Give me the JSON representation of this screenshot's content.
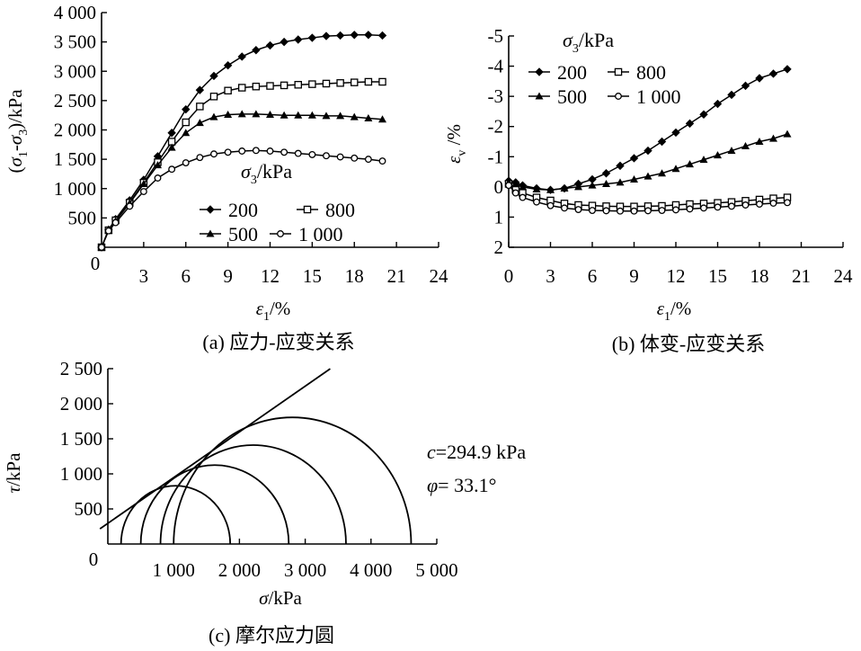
{
  "figure": {
    "panels": [
      {
        "id": "a",
        "type": "line",
        "caption": "(a) 应力-应变关系",
        "xlabel": "ε1/%",
        "ylabel": "(σ1-σ3)/kPa",
        "xlim": [
          0,
          24
        ],
        "ylim": [
          0,
          4000
        ],
        "xticks": [
          3,
          6,
          9,
          12,
          15,
          18,
          21,
          24
        ],
        "xtick_labels": [
          "3",
          "6",
          "9",
          "12",
          "15",
          "18",
          "21",
          "24"
        ],
        "yticks": [
          500,
          1000,
          1500,
          2000,
          2500,
          3000,
          3500,
          4000
        ],
        "ytick_labels": [
          "500",
          "1 000",
          "1 500",
          "2 000",
          "2 500",
          "3 000",
          "3 500",
          "4 000"
        ],
        "origin_label": "0",
        "legend": {
          "title": "σ3/kPa",
          "placement": "lower-center",
          "entries": [
            {
              "label": "200",
              "marker": "diamond"
            },
            {
              "label": "800",
              "marker": "square-open"
            },
            {
              "label": "500",
              "marker": "triangle"
            },
            {
              "label": "1 000",
              "marker": "circle-open"
            }
          ]
        },
        "series": [
          {
            "name": "200",
            "marker": "diamond",
            "x": [
              0,
              0.5,
              1,
              2,
              3,
              4,
              5,
              6,
              7,
              8,
              9,
              10,
              11,
              12,
              13,
              14,
              15,
              16,
              17,
              18,
              19,
              20
            ],
            "y": [
              0,
              300,
              480,
              800,
              1150,
              1550,
              1950,
              2350,
              2680,
              2920,
              3100,
              3250,
              3360,
              3440,
              3500,
              3540,
              3570,
              3600,
              3610,
              3620,
              3620,
              3610
            ]
          },
          {
            "name": "800",
            "marker": "square-open",
            "x": [
              0,
              0.5,
              1,
              2,
              3,
              4,
              5,
              6,
              7,
              8,
              9,
              10,
              11,
              12,
              13,
              14,
              15,
              16,
              17,
              18,
              19,
              20
            ],
            "y": [
              0,
              290,
              460,
              760,
              1100,
              1450,
              1800,
              2130,
              2400,
              2570,
              2670,
              2720,
              2740,
              2750,
              2760,
              2770,
              2780,
              2790,
              2800,
              2810,
              2820,
              2820
            ]
          },
          {
            "name": "500",
            "marker": "triangle",
            "x": [
              0,
              0.5,
              1,
              2,
              3,
              4,
              5,
              6,
              7,
              8,
              9,
              10,
              11,
              12,
              13,
              14,
              15,
              16,
              17,
              18,
              19,
              20
            ],
            "y": [
              0,
              290,
              450,
              750,
              1080,
              1400,
              1700,
              1950,
              2120,
              2220,
              2260,
              2270,
              2270,
              2260,
              2250,
              2250,
              2250,
              2240,
              2240,
              2220,
              2200,
              2180
            ]
          },
          {
            "name": "1 000",
            "marker": "circle-open",
            "x": [
              0,
              0.5,
              1,
              2,
              3,
              4,
              5,
              6,
              7,
              8,
              9,
              10,
              11,
              12,
              13,
              14,
              15,
              16,
              17,
              18,
              19,
              20
            ],
            "y": [
              0,
              280,
              420,
              700,
              950,
              1180,
              1330,
              1440,
              1530,
              1590,
              1620,
              1640,
              1650,
              1640,
              1620,
              1600,
              1580,
              1560,
              1540,
              1520,
              1500,
              1470
            ]
          }
        ]
      },
      {
        "id": "b",
        "type": "line",
        "caption": "(b) 体变-应变关系",
        "xlabel": "ε1/%",
        "ylabel": "εv/%",
        "xlim": [
          0,
          24
        ],
        "ylim": [
          2,
          -5
        ],
        "xticks": [
          0,
          3,
          6,
          9,
          12,
          15,
          18,
          21,
          24
        ],
        "xtick_labels": [
          "0",
          "3",
          "6",
          "9",
          "12",
          "15",
          "18",
          "21",
          "24"
        ],
        "yticks": [
          -5,
          -4,
          -3,
          -2,
          -1,
          0,
          1,
          2
        ],
        "ytick_labels": [
          "-5",
          "-4",
          "-3",
          "-2",
          "-1",
          "0",
          "1",
          "2"
        ],
        "legend": {
          "title": "σ3/kPa",
          "placement": "top-center",
          "entries": [
            {
              "label": "200",
              "marker": "diamond"
            },
            {
              "label": "800",
              "marker": "square-open"
            },
            {
              "label": "500",
              "marker": "triangle"
            },
            {
              "label": "1 000",
              "marker": "circle-open"
            }
          ]
        },
        "series": [
          {
            "name": "200",
            "marker": "diamond",
            "x": [
              0,
              0.5,
              1,
              2,
              3,
              4,
              5,
              6,
              7,
              8,
              9,
              10,
              11,
              12,
              13,
              14,
              15,
              16,
              17,
              18,
              19,
              20
            ],
            "y": [
              -0.2,
              -0.15,
              -0.05,
              0.05,
              0.1,
              0.05,
              -0.1,
              -0.25,
              -0.45,
              -0.7,
              -0.95,
              -1.2,
              -1.5,
              -1.8,
              -2.1,
              -2.4,
              -2.75,
              -3.05,
              -3.35,
              -3.6,
              -3.75,
              -3.9
            ]
          },
          {
            "name": "800",
            "marker": "square-open",
            "x": [
              0,
              0.5,
              1,
              2,
              3,
              4,
              5,
              6,
              7,
              8,
              9,
              10,
              11,
              12,
              13,
              14,
              15,
              16,
              17,
              18,
              19,
              20
            ],
            "y": [
              -0.1,
              0.1,
              0.2,
              0.35,
              0.45,
              0.55,
              0.6,
              0.62,
              0.64,
              0.65,
              0.65,
              0.64,
              0.63,
              0.6,
              0.57,
              0.55,
              0.53,
              0.5,
              0.46,
              0.42,
              0.38,
              0.35
            ]
          },
          {
            "name": "500",
            "marker": "triangle",
            "x": [
              0,
              0.5,
              1,
              2,
              3,
              4,
              5,
              6,
              7,
              8,
              9,
              10,
              11,
              12,
              13,
              14,
              15,
              16,
              17,
              18,
              19,
              20
            ],
            "y": [
              -0.15,
              -0.1,
              0,
              0.08,
              0.1,
              0.05,
              0,
              -0.05,
              -0.1,
              -0.15,
              -0.25,
              -0.35,
              -0.45,
              -0.6,
              -0.75,
              -0.9,
              -1.05,
              -1.2,
              -1.35,
              -1.5,
              -1.6,
              -1.75
            ]
          },
          {
            "name": "1 000",
            "marker": "circle-open",
            "x": [
              0,
              0.5,
              1,
              2,
              3,
              4,
              5,
              6,
              7,
              8,
              9,
              10,
              11,
              12,
              13,
              14,
              15,
              16,
              17,
              18,
              19,
              20
            ],
            "y": [
              -0.05,
              0.2,
              0.35,
              0.5,
              0.62,
              0.7,
              0.75,
              0.78,
              0.79,
              0.8,
              0.8,
              0.79,
              0.78,
              0.76,
              0.73,
              0.7,
              0.67,
              0.64,
              0.6,
              0.57,
              0.54,
              0.52
            ]
          }
        ]
      },
      {
        "id": "c",
        "type": "line",
        "caption": "(c) 摩尔应力圆",
        "xlabel": "σ/kPa",
        "ylabel": "τ/kPa",
        "xlim": [
          0,
          5000
        ],
        "ylim": [
          0,
          2500
        ],
        "xticks": [
          1000,
          2000,
          3000,
          4000,
          5000
        ],
        "xtick_labels": [
          "1 000",
          "2 000",
          "3 000",
          "4 000",
          "5 000"
        ],
        "yticks": [
          500,
          1000,
          1500,
          2000,
          2500
        ],
        "ytick_labels": [
          "500",
          "1 000",
          "1 500",
          "2 000",
          "2 500"
        ],
        "origin_label": "0",
        "circles": [
          {
            "sigma3": 200,
            "sigma1": 1860
          },
          {
            "sigma3": 500,
            "sigma1": 2750
          },
          {
            "sigma3": 800,
            "sigma1": 3620
          },
          {
            "sigma3": 1000,
            "sigma1": 4610
          }
        ],
        "envelope": {
          "c": 294.9,
          "phi_deg": 33.1,
          "x_range": [
            -120,
            3380
          ]
        },
        "annotations": [
          "c=294.9 kPa",
          "φ= 33.1°"
        ]
      }
    ]
  }
}
